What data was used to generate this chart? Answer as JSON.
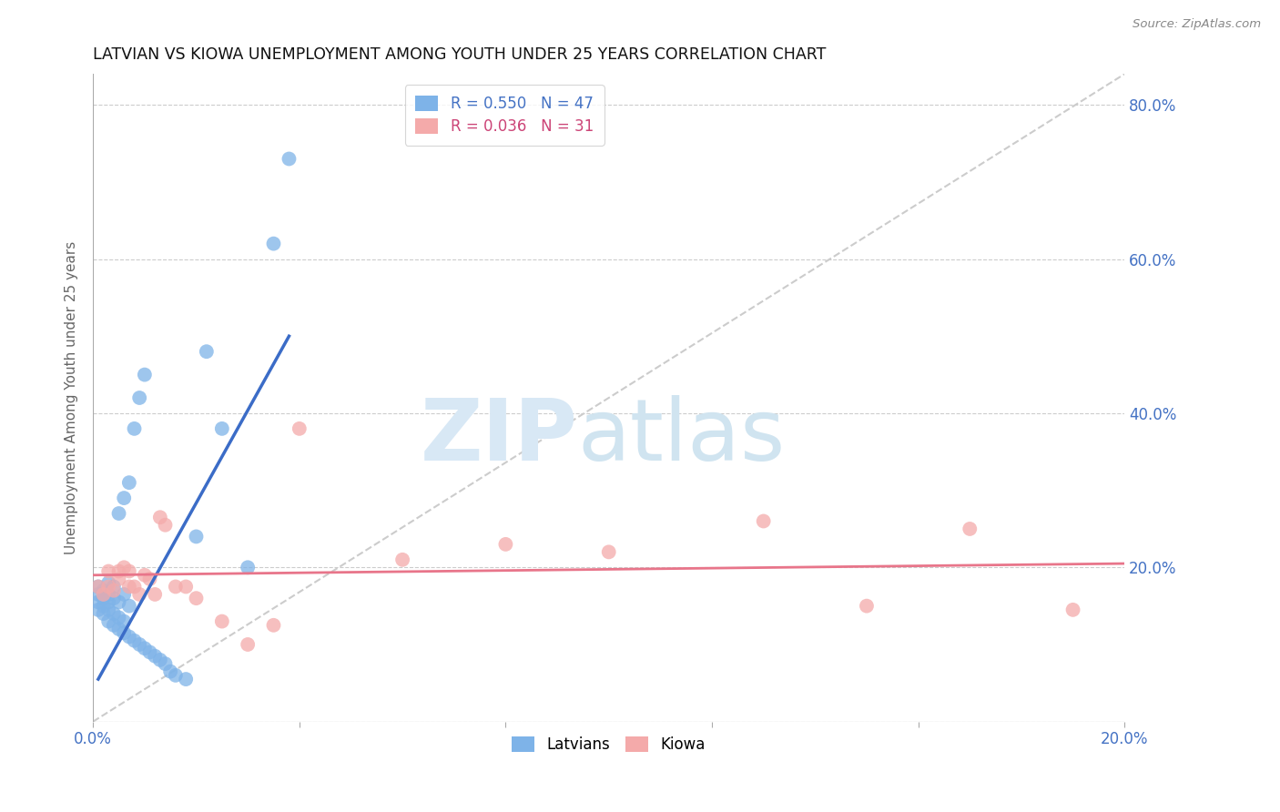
{
  "title": "LATVIAN VS KIOWA UNEMPLOYMENT AMONG YOUTH UNDER 25 YEARS CORRELATION CHART",
  "source": "Source: ZipAtlas.com",
  "ylabel": "Unemployment Among Youth under 25 years",
  "xlim": [
    0.0,
    0.2
  ],
  "ylim": [
    0.0,
    0.84
  ],
  "x_ticks": [
    0.0,
    0.04,
    0.08,
    0.12,
    0.16,
    0.2
  ],
  "x_tick_labels": [
    "0.0%",
    "",
    "",
    "",
    "",
    "20.0%"
  ],
  "y_ticks_right": [
    0.0,
    0.2,
    0.4,
    0.6,
    0.8
  ],
  "y_tick_labels_right": [
    "",
    "20.0%",
    "40.0%",
    "60.0%",
    "80.0%"
  ],
  "legend_blue_r": "R = 0.550",
  "legend_blue_n": "N = 47",
  "legend_pink_r": "R = 0.036",
  "legend_pink_n": "N = 31",
  "blue_color": "#7EB3E8",
  "pink_color": "#F4AAAA",
  "line_blue_color": "#3B6CC7",
  "line_pink_color": "#E8758A",
  "diagonal_color": "#CCCCCC",
  "latvians_x": [
    0.001,
    0.001,
    0.001,
    0.001,
    0.002,
    0.002,
    0.002,
    0.002,
    0.003,
    0.003,
    0.003,
    0.003,
    0.003,
    0.004,
    0.004,
    0.004,
    0.004,
    0.005,
    0.005,
    0.005,
    0.005,
    0.006,
    0.006,
    0.006,
    0.006,
    0.007,
    0.007,
    0.007,
    0.008,
    0.008,
    0.009,
    0.009,
    0.01,
    0.01,
    0.011,
    0.012,
    0.013,
    0.014,
    0.015,
    0.016,
    0.018,
    0.02,
    0.022,
    0.025,
    0.03,
    0.035,
    0.038
  ],
  "latvians_y": [
    0.145,
    0.155,
    0.165,
    0.175,
    0.14,
    0.15,
    0.16,
    0.17,
    0.13,
    0.145,
    0.155,
    0.165,
    0.18,
    0.125,
    0.14,
    0.16,
    0.175,
    0.12,
    0.135,
    0.155,
    0.27,
    0.115,
    0.13,
    0.165,
    0.29,
    0.11,
    0.15,
    0.31,
    0.105,
    0.38,
    0.1,
    0.42,
    0.095,
    0.45,
    0.09,
    0.085,
    0.08,
    0.075,
    0.065,
    0.06,
    0.055,
    0.24,
    0.48,
    0.38,
    0.2,
    0.62,
    0.73
  ],
  "kiowa_x": [
    0.001,
    0.002,
    0.003,
    0.003,
    0.004,
    0.005,
    0.005,
    0.006,
    0.007,
    0.007,
    0.008,
    0.009,
    0.01,
    0.011,
    0.012,
    0.013,
    0.014,
    0.016,
    0.018,
    0.02,
    0.025,
    0.03,
    0.035,
    0.04,
    0.06,
    0.08,
    0.1,
    0.13,
    0.15,
    0.17,
    0.19
  ],
  "kiowa_y": [
    0.175,
    0.165,
    0.175,
    0.195,
    0.17,
    0.195,
    0.185,
    0.2,
    0.175,
    0.195,
    0.175,
    0.165,
    0.19,
    0.185,
    0.165,
    0.265,
    0.255,
    0.175,
    0.175,
    0.16,
    0.13,
    0.1,
    0.125,
    0.38,
    0.21,
    0.23,
    0.22,
    0.26,
    0.15,
    0.25,
    0.145
  ],
  "blue_line_x": [
    0.001,
    0.038
  ],
  "blue_line_y": [
    0.055,
    0.5
  ],
  "pink_line_x": [
    0.0,
    0.2
  ],
  "pink_line_y": [
    0.19,
    0.205
  ]
}
